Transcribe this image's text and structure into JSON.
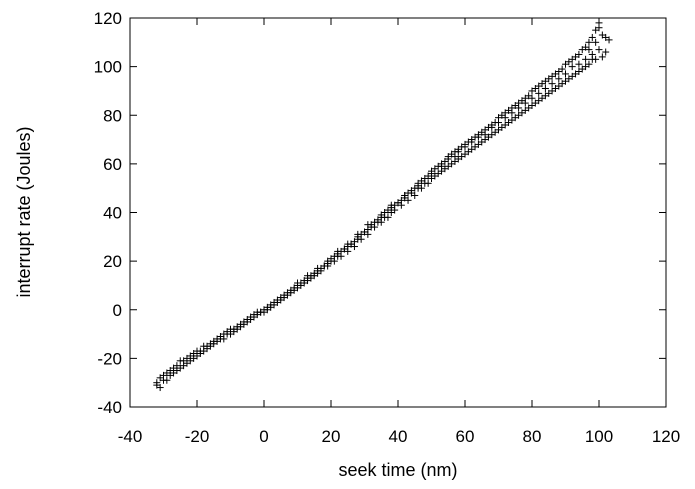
{
  "chart_data": {
    "type": "scatter",
    "title": "",
    "xlabel": "seek time (nm)",
    "ylabel": "interrupt rate (Joules)",
    "xlim": [
      -40,
      120
    ],
    "ylim": [
      -40,
      120
    ],
    "xticks": [
      -40,
      -20,
      0,
      20,
      40,
      60,
      80,
      100,
      120
    ],
    "yticks": [
      -40,
      -20,
      0,
      20,
      40,
      60,
      80,
      100,
      120
    ],
    "grid": false,
    "marker": "plus",
    "color": "#000000",
    "series": [
      {
        "name": "",
        "points": [
          [
            -32,
            -30
          ],
          [
            -31,
            -28
          ],
          [
            -30,
            -27
          ],
          [
            -29,
            -26
          ],
          [
            -28,
            -25
          ],
          [
            -27,
            -24
          ],
          [
            -26,
            -23
          ],
          [
            -25,
            -21
          ],
          [
            -24,
            -21
          ],
          [
            -23,
            -20
          ],
          [
            -22,
            -19
          ],
          [
            -21,
            -18
          ],
          [
            -20,
            -17
          ],
          [
            -19,
            -17
          ],
          [
            -18,
            -15
          ],
          [
            -17,
            -15
          ],
          [
            -16,
            -14
          ],
          [
            -15,
            -13
          ],
          [
            -14,
            -12
          ],
          [
            -13,
            -11
          ],
          [
            -12,
            -10
          ],
          [
            -11,
            -9
          ],
          [
            -10,
            -8
          ],
          [
            -9,
            -8
          ],
          [
            -8,
            -7
          ],
          [
            -7,
            -6
          ],
          [
            -6,
            -5
          ],
          [
            -5,
            -4
          ],
          [
            -4,
            -3
          ],
          [
            -3,
            -2
          ],
          [
            -2,
            -1
          ],
          [
            -1,
            -1
          ],
          [
            0,
            0
          ],
          [
            1,
            1
          ],
          [
            2,
            2
          ],
          [
            3,
            3
          ],
          [
            4,
            4
          ],
          [
            5,
            5
          ],
          [
            6,
            6
          ],
          [
            7,
            7
          ],
          [
            8,
            8
          ],
          [
            9,
            9
          ],
          [
            10,
            10
          ],
          [
            11,
            11
          ],
          [
            12,
            12
          ],
          [
            13,
            13
          ],
          [
            14,
            14
          ],
          [
            15,
            15
          ],
          [
            16,
            16
          ],
          [
            17,
            17
          ],
          [
            18,
            18
          ],
          [
            19,
            19
          ],
          [
            20,
            21
          ],
          [
            21,
            22
          ],
          [
            22,
            23
          ],
          [
            23,
            24
          ],
          [
            24,
            25
          ],
          [
            25,
            26
          ],
          [
            26,
            27
          ],
          [
            27,
            28
          ],
          [
            28,
            30
          ],
          [
            29,
            31
          ],
          [
            30,
            32
          ],
          [
            31,
            33
          ],
          [
            32,
            35
          ],
          [
            33,
            36
          ],
          [
            34,
            37
          ],
          [
            35,
            38
          ],
          [
            36,
            40
          ],
          [
            37,
            41
          ],
          [
            38,
            42
          ],
          [
            39,
            43
          ],
          [
            40,
            44
          ],
          [
            41,
            45
          ],
          [
            42,
            47
          ],
          [
            43,
            48
          ],
          [
            44,
            49
          ],
          [
            45,
            50
          ],
          [
            46,
            52
          ],
          [
            47,
            53
          ],
          [
            48,
            54
          ],
          [
            49,
            55
          ],
          [
            50,
            57
          ],
          [
            51,
            58
          ],
          [
            52,
            59
          ],
          [
            53,
            60
          ],
          [
            54,
            61
          ],
          [
            55,
            62
          ],
          [
            56,
            64
          ],
          [
            57,
            65
          ],
          [
            58,
            66
          ],
          [
            59,
            67
          ],
          [
            60,
            68
          ],
          [
            61,
            69
          ],
          [
            62,
            70
          ],
          [
            63,
            71
          ],
          [
            64,
            72
          ],
          [
            65,
            73
          ],
          [
            66,
            74
          ],
          [
            67,
            75
          ],
          [
            68,
            76
          ],
          [
            69,
            77
          ],
          [
            70,
            79
          ],
          [
            71,
            80
          ],
          [
            72,
            81
          ],
          [
            73,
            82
          ],
          [
            74,
            83
          ],
          [
            75,
            84
          ],
          [
            76,
            85
          ],
          [
            77,
            86
          ],
          [
            78,
            87
          ],
          [
            79,
            88
          ],
          [
            80,
            90
          ],
          [
            81,
            91
          ],
          [
            82,
            92
          ],
          [
            83,
            93
          ],
          [
            84,
            94
          ],
          [
            85,
            95
          ],
          [
            86,
            96
          ],
          [
            87,
            97
          ],
          [
            88,
            98
          ],
          [
            89,
            99
          ],
          [
            90,
            101
          ],
          [
            91,
            102
          ],
          [
            92,
            103
          ],
          [
            93,
            104
          ],
          [
            94,
            105
          ],
          [
            95,
            107
          ],
          [
            96,
            108
          ],
          [
            97,
            110
          ],
          [
            98,
            112
          ],
          [
            99,
            115
          ],
          [
            100,
            116
          ],
          [
            101,
            113
          ],
          [
            102,
            112
          ],
          [
            103,
            111
          ],
          [
            -31,
            -32
          ],
          [
            -29,
            -29
          ],
          [
            -27,
            -26
          ],
          [
            -25,
            -24
          ],
          [
            -23,
            -22
          ],
          [
            -21,
            -20
          ],
          [
            -19,
            -18
          ],
          [
            -17,
            -16
          ],
          [
            -15,
            -14
          ],
          [
            -13,
            -12
          ],
          [
            -11,
            -10
          ],
          [
            -9,
            -9
          ],
          [
            -7,
            -7
          ],
          [
            -5,
            -5
          ],
          [
            -3,
            -3
          ],
          [
            -1,
            -1
          ],
          [
            1,
            0
          ],
          [
            3,
            2
          ],
          [
            5,
            4
          ],
          [
            7,
            6
          ],
          [
            9,
            8
          ],
          [
            11,
            10
          ],
          [
            13,
            12
          ],
          [
            15,
            14
          ],
          [
            17,
            16
          ],
          [
            19,
            18
          ],
          [
            21,
            20
          ],
          [
            23,
            22
          ],
          [
            25,
            24
          ],
          [
            27,
            26
          ],
          [
            29,
            29
          ],
          [
            31,
            31
          ],
          [
            33,
            34
          ],
          [
            35,
            36
          ],
          [
            37,
            38
          ],
          [
            39,
            41
          ],
          [
            41,
            43
          ],
          [
            43,
            45
          ],
          [
            45,
            47
          ],
          [
            47,
            50
          ],
          [
            49,
            52
          ],
          [
            51,
            55
          ],
          [
            53,
            57
          ],
          [
            55,
            59
          ],
          [
            57,
            61
          ],
          [
            59,
            63
          ],
          [
            61,
            65
          ],
          [
            63,
            67
          ],
          [
            65,
            69
          ],
          [
            67,
            71
          ],
          [
            69,
            73
          ],
          [
            71,
            75
          ],
          [
            73,
            77
          ],
          [
            75,
            79
          ],
          [
            77,
            81
          ],
          [
            79,
            83
          ],
          [
            81,
            85
          ],
          [
            83,
            87
          ],
          [
            85,
            89
          ],
          [
            87,
            91
          ],
          [
            89,
            93
          ],
          [
            91,
            95
          ],
          [
            93,
            97
          ],
          [
            95,
            99
          ],
          [
            97,
            101
          ],
          [
            99,
            103
          ],
          [
            101,
            104
          ],
          [
            102,
            106
          ],
          [
            100,
            107
          ],
          [
            98,
            103
          ],
          [
            96,
            100
          ],
          [
            94,
            98
          ],
          [
            92,
            96
          ],
          [
            90,
            94
          ],
          [
            88,
            92
          ],
          [
            86,
            90
          ],
          [
            84,
            88
          ],
          [
            82,
            86
          ],
          [
            80,
            84
          ],
          [
            78,
            82
          ],
          [
            76,
            80
          ],
          [
            74,
            78
          ],
          [
            72,
            76
          ],
          [
            70,
            74
          ],
          [
            68,
            72
          ],
          [
            66,
            70
          ],
          [
            64,
            68
          ],
          [
            62,
            66
          ],
          [
            60,
            64
          ],
          [
            58,
            62
          ],
          [
            56,
            60
          ],
          [
            54,
            58
          ],
          [
            52,
            56
          ],
          [
            50,
            54
          ],
          [
            48,
            52
          ],
          [
            46,
            50
          ],
          [
            44,
            48
          ],
          [
            42,
            46
          ],
          [
            40,
            44
          ],
          [
            38,
            40
          ],
          [
            36,
            38
          ],
          [
            34,
            36
          ],
          [
            32,
            34
          ],
          [
            30,
            32
          ],
          [
            28,
            29
          ],
          [
            26,
            27
          ],
          [
            24,
            25
          ],
          [
            22,
            22
          ],
          [
            20,
            20
          ],
          [
            18,
            18
          ],
          [
            16,
            15
          ],
          [
            14,
            13
          ],
          [
            12,
            11
          ],
          [
            10,
            9
          ],
          [
            8,
            7
          ],
          [
            6,
            5
          ],
          [
            4,
            3
          ],
          [
            2,
            1
          ],
          [
            0,
            -1
          ],
          [
            -2,
            -2
          ],
          [
            -4,
            -4
          ],
          [
            -6,
            -6
          ],
          [
            -8,
            -8
          ],
          [
            -10,
            -10
          ],
          [
            -12,
            -12
          ],
          [
            -14,
            -13
          ],
          [
            -16,
            -15
          ],
          [
            -18,
            -17
          ],
          [
            -20,
            -19
          ],
          [
            -22,
            -21
          ],
          [
            -24,
            -23
          ],
          [
            -26,
            -25
          ],
          [
            -28,
            -27
          ],
          [
            -30,
            -29
          ],
          [
            -32,
            -31
          ],
          [
            55,
            63
          ],
          [
            58,
            65
          ],
          [
            62,
            69
          ],
          [
            66,
            72
          ],
          [
            70,
            77
          ],
          [
            74,
            81
          ],
          [
            78,
            85
          ],
          [
            82,
            89
          ],
          [
            86,
            93
          ],
          [
            90,
            97
          ],
          [
            94,
            101
          ],
          [
            96,
            103
          ],
          [
            98,
            105
          ],
          [
            99,
            110
          ],
          [
            100,
            118
          ],
          [
            97,
            107
          ],
          [
            92,
            100
          ],
          [
            88,
            95
          ],
          [
            84,
            91
          ],
          [
            80,
            87
          ],
          [
            76,
            83
          ],
          [
            72,
            79
          ],
          [
            68,
            75
          ],
          [
            64,
            71
          ],
          [
            60,
            67
          ],
          [
            57,
            63
          ],
          [
            53,
            59
          ],
          [
            50,
            56
          ],
          [
            46,
            51
          ],
          [
            42,
            47
          ],
          [
            38,
            43
          ],
          [
            35,
            39
          ],
          [
            31,
            35
          ],
          [
            28,
            31
          ],
          [
            25,
            27
          ],
          [
            22,
            24
          ],
          [
            19,
            20
          ],
          [
            16,
            17
          ],
          [
            13,
            14
          ],
          [
            10,
            11
          ]
        ]
      }
    ]
  }
}
